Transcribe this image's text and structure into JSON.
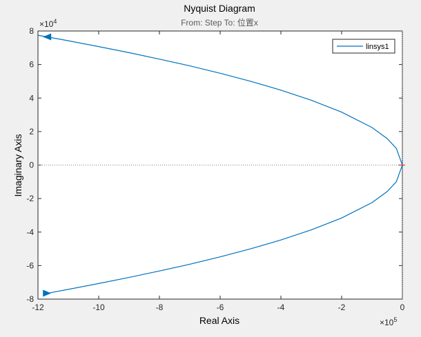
{
  "chart_data": {
    "type": "line",
    "title": "Nyquist Diagram",
    "subtitle": "From: Step  To: 位置x",
    "xlabel": "Real Axis",
    "ylabel": "Imaginary Axis",
    "xlim": [
      -12,
      0
    ],
    "ylim": [
      -8,
      8
    ],
    "x_exponent_label": "×10⁵",
    "x_exponent_base": "×10",
    "x_exponent_power": "5",
    "y_exponent_base": "×10",
    "y_exponent_power": "4",
    "xticks": [
      -12,
      -10,
      -8,
      -6,
      -4,
      -2,
      0
    ],
    "yticks": [
      -8,
      -6,
      -4,
      -2,
      0,
      2,
      4,
      6,
      8
    ],
    "xtick_labels": [
      "-12",
      "-10",
      "-8",
      "-6",
      "-4",
      "-2",
      "0"
    ],
    "ytick_labels": [
      "-8",
      "-6",
      "-4",
      "-2",
      "0",
      "2",
      "4",
      "6",
      "8"
    ],
    "grid": false,
    "legend_position": "top-right",
    "series": [
      {
        "name": "linsys1",
        "color": "#0072bd",
        "x": [
          -12.0,
          -11.0,
          -10.0,
          -9.0,
          -8.0,
          -7.0,
          -6.0,
          -5.0,
          -4.0,
          -3.0,
          -2.0,
          -1.0,
          -0.5,
          -0.2,
          0.0,
          -0.2,
          -0.5,
          -1.0,
          -2.0,
          -3.0,
          -4.0,
          -5.0,
          -6.0,
          -7.0,
          -8.0,
          -9.0,
          -10.0,
          -11.0,
          -11.6
        ],
        "y": [
          7.75,
          7.42,
          7.07,
          6.71,
          6.32,
          5.92,
          5.48,
          5.0,
          4.47,
          3.87,
          3.16,
          2.24,
          1.58,
          1.0,
          0.0,
          -1.0,
          -1.58,
          -2.24,
          -3.16,
          -3.87,
          -4.47,
          -5.0,
          -5.48,
          -5.92,
          -6.32,
          -6.71,
          -7.07,
          -7.42,
          -7.62
        ]
      }
    ],
    "arrows": [
      {
        "x": -11.7,
        "y": 7.65,
        "direction": "left"
      },
      {
        "x": -11.7,
        "y": -7.65,
        "direction": "right"
      }
    ],
    "zero_line_color": "#808080",
    "critical_point_color": "#ff0000"
  }
}
